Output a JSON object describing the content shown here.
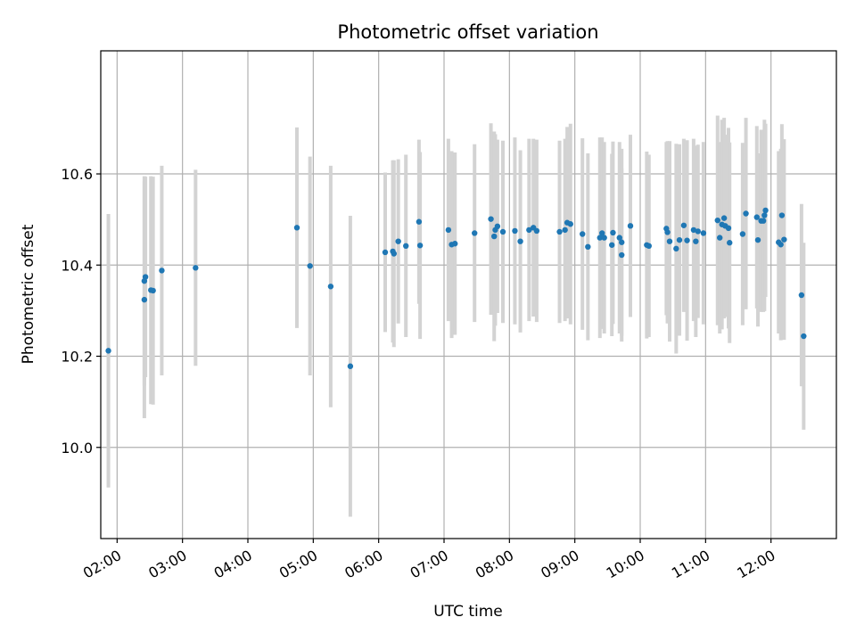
{
  "chart_data": {
    "type": "scatter",
    "title": "Photometric offset variation",
    "xlabel": "UTC time",
    "ylabel": "Photometric offset",
    "xlim": [
      "01:45",
      "13:00"
    ],
    "ylim": [
      9.8,
      10.87
    ],
    "grid": true,
    "x_ticks": [
      "02:00",
      "03:00",
      "04:00",
      "05:00",
      "06:00",
      "07:00",
      "08:00",
      "09:00",
      "10:00",
      "11:00",
      "12:00"
    ],
    "y_ticks": [
      "10.0",
      "10.2",
      "10.4",
      "10.6"
    ],
    "y_tick_values": [
      10.0,
      10.2,
      10.4,
      10.6
    ],
    "colors": {
      "marker": "#1f77b4",
      "errorbar": "#d3d3d3",
      "grid": "#b0b0b0"
    },
    "series": [
      {
        "x": [
          "01:52",
          "02:25",
          "02:25",
          "02:26",
          "02:31",
          "02:33",
          "02:41",
          "03:12",
          "04:45",
          "04:57",
          "05:16",
          "05:34",
          "06:06",
          "06:13",
          "06:14",
          "06:18",
          "06:25",
          "06:37",
          "06:38",
          "07:04",
          "07:07",
          "07:10",
          "07:28",
          "07:43",
          "07:46",
          "07:47",
          "07:49",
          "07:54",
          "08:05",
          "08:10",
          "08:18",
          "08:22",
          "08:25",
          "08:46",
          "08:51",
          "08:53",
          "08:56",
          "09:07",
          "09:12",
          "09:23",
          "09:25",
          "09:27",
          "09:34",
          "09:35",
          "09:41",
          "09:43",
          "09:43",
          "09:51",
          "10:06",
          "10:08",
          "10:24",
          "10:25",
          "10:27",
          "10:33",
          "10:36",
          "10:40",
          "10:43",
          "10:49",
          "10:51",
          "10:53",
          "10:58",
          "11:11",
          "11:13",
          "11:15",
          "11:17",
          "11:18",
          "11:21",
          "11:22",
          "11:34",
          "11:37",
          "11:47",
          "11:48",
          "11:51",
          "11:53",
          "11:54",
          "11:55",
          "12:07",
          "12:09",
          "12:10",
          "12:12",
          "12:28",
          "12:30"
        ],
        "y": [
          10.212,
          10.324,
          10.365,
          10.374,
          10.345,
          10.344,
          10.388,
          10.394,
          10.482,
          10.398,
          10.353,
          10.178,
          10.428,
          10.43,
          10.425,
          10.452,
          10.442,
          10.495,
          10.443,
          10.477,
          10.445,
          10.447,
          10.47,
          10.501,
          10.463,
          10.477,
          10.485,
          10.473,
          10.475,
          10.452,
          10.477,
          10.482,
          10.475,
          10.473,
          10.477,
          10.493,
          10.49,
          10.468,
          10.44,
          10.46,
          10.47,
          10.46,
          10.444,
          10.471,
          10.46,
          10.45,
          10.422,
          10.486,
          10.444,
          10.442,
          10.48,
          10.472,
          10.452,
          10.436,
          10.455,
          10.487,
          10.454,
          10.477,
          10.452,
          10.474,
          10.47,
          10.498,
          10.46,
          10.489,
          10.503,
          10.486,
          10.481,
          10.449,
          10.468,
          10.513,
          10.505,
          10.455,
          10.497,
          10.497,
          10.509,
          10.52,
          10.45,
          10.445,
          10.509,
          10.456,
          10.334,
          10.244
        ],
        "yerr": [
          0.3,
          0.26,
          0.23,
          0.22,
          0.25,
          0.25,
          0.23,
          0.215,
          0.22,
          0.24,
          0.265,
          0.33,
          0.175,
          0.2,
          0.205,
          0.18,
          0.2,
          0.18,
          0.205,
          0.2,
          0.205,
          0.2,
          0.195,
          0.21,
          0.23,
          0.21,
          0.19,
          0.2,
          0.205,
          0.2,
          0.2,
          0.195,
          0.2,
          0.2,
          0.2,
          0.21,
          0.22,
          0.21,
          0.205,
          0.22,
          0.21,
          0.21,
          0.2,
          0.2,
          0.21,
          0.205,
          0.19,
          0.2,
          0.205,
          0.2,
          0.19,
          0.2,
          0.22,
          0.23,
          0.21,
          0.19,
          0.22,
          0.2,
          0.21,
          0.19,
          0.2,
          0.23,
          0.21,
          0.23,
          0.22,
          0.2,
          0.22,
          0.22,
          0.2,
          0.21,
          0.2,
          0.19,
          0.2,
          0.2,
          0.21,
          0.19,
          0.2,
          0.21,
          0.2,
          0.22,
          0.2,
          0.205
        ]
      }
    ]
  }
}
